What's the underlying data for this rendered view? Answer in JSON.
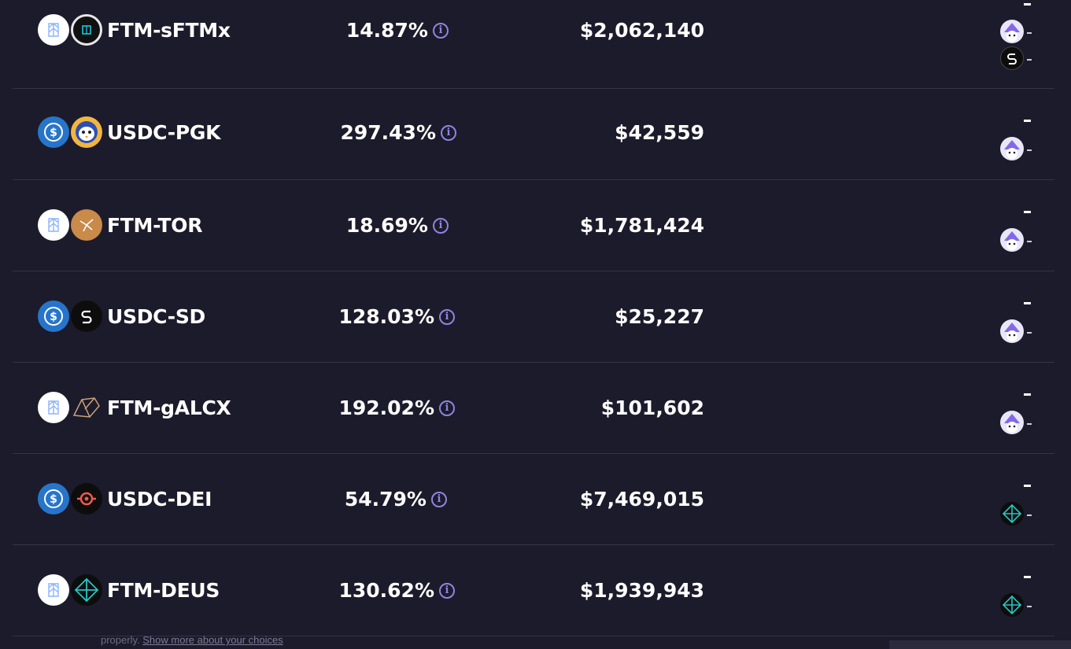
{
  "farms": [
    {
      "pair": "FTM-sFTMx",
      "apr": "14.87%",
      "tvl": "$2,062,140",
      "token_a": "fantom-icon",
      "token_b": "sftmx-icon",
      "rewards": [
        "wizard-reward-icon",
        "sd-reward-icon"
      ]
    },
    {
      "pair": "USDC-PGK",
      "apr": "297.43%",
      "tvl": "$42,559",
      "token_a": "usdc-icon",
      "token_b": "penguin-icon",
      "rewards": [
        "wizard-reward-icon"
      ]
    },
    {
      "pair": "FTM-TOR",
      "apr": "18.69%",
      "tvl": "$1,781,424",
      "token_a": "fantom-icon",
      "token_b": "tor-icon",
      "rewards": [
        "wizard-reward-icon"
      ]
    },
    {
      "pair": "USDC-SD",
      "apr": "128.03%",
      "tvl": "$25,227",
      "token_a": "usdc-icon",
      "token_b": "sd-icon",
      "rewards": [
        "wizard-reward-icon"
      ]
    },
    {
      "pair": "FTM-gALCX",
      "apr": "192.02%",
      "tvl": "$101,602",
      "token_a": "fantom-icon",
      "token_b": "galcx-icon",
      "rewards": [
        "wizard-reward-icon"
      ]
    },
    {
      "pair": "USDC-DEI",
      "apr": "54.79%",
      "tvl": "$7,469,015",
      "token_a": "usdc-icon",
      "token_b": "dei-icon",
      "rewards": [
        "deus-reward-icon"
      ]
    },
    {
      "pair": "FTM-DEUS",
      "apr": "130.62%",
      "tvl": "$1,939,943",
      "token_a": "fantom-icon",
      "token_b": "deus-icon",
      "rewards": [
        "deus-reward-icon"
      ]
    }
  ],
  "footer": {
    "text": "properly.",
    "link": "Show more about your choices"
  },
  "colors": {
    "background": "#1c1b2b",
    "divider": "#34334a",
    "info": "#8f84e0",
    "usdc": "#2775ca",
    "tor": "#c98a4a",
    "deus": "#25c6c6"
  }
}
